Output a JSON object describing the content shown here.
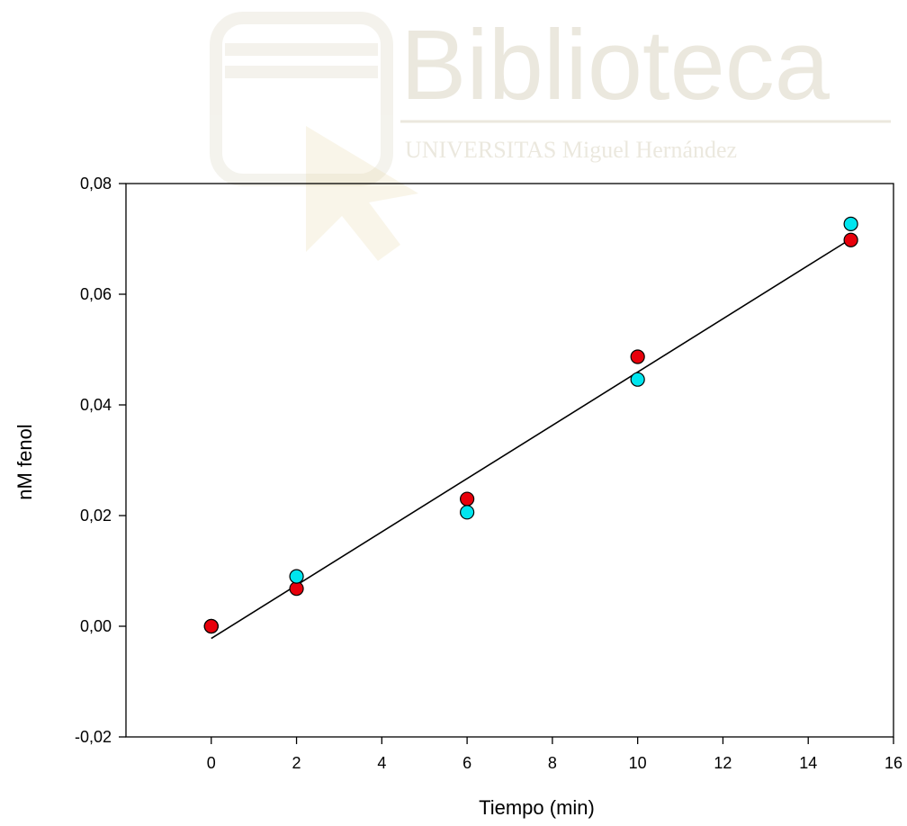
{
  "watermark": {
    "title": "Biblioteca",
    "subtitle": "UNIVERSITAS Miguel Hernández"
  },
  "chart_data": {
    "type": "scatter",
    "title": "",
    "xlabel": "Tiempo (min)",
    "ylabel": "nM fenol",
    "xlim": [
      -2,
      16
    ],
    "ylim": [
      -0.02,
      0.08
    ],
    "x_ticks": [
      0,
      2,
      4,
      6,
      8,
      10,
      12,
      14,
      16
    ],
    "x_tick_labels": [
      "0",
      "2",
      "4",
      "6",
      "8",
      "10",
      "12",
      "14",
      "16"
    ],
    "y_ticks": [
      -0.02,
      0.0,
      0.02,
      0.04,
      0.06,
      0.08
    ],
    "y_tick_labels": [
      "-0,02",
      "0,00",
      "0,02",
      "0,04",
      "0,06",
      "0,08"
    ],
    "grid": false,
    "legend": "none",
    "series": [
      {
        "color": "#e8000b",
        "x": [
          0,
          2,
          6,
          10,
          15
        ],
        "y": [
          0.0,
          0.0068,
          0.023,
          0.0487,
          0.0698
        ]
      },
      {
        "color": "#00e5ee",
        "x": [
          0,
          2,
          6,
          10,
          15
        ],
        "y": [
          0.0,
          0.009,
          0.0206,
          0.0446,
          0.0727
        ]
      }
    ],
    "fit_line": {
      "color": "#000000",
      "x": [
        0,
        15
      ],
      "y": [
        -0.0022,
        0.07
      ]
    }
  }
}
